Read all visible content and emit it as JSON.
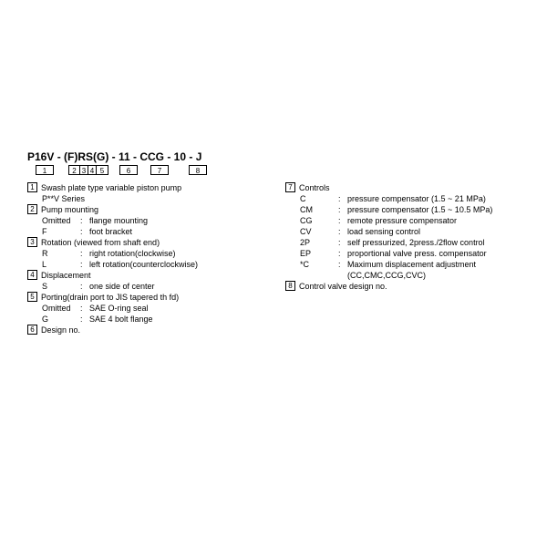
{
  "model": "P16V - (F)RS(G) - 11 - CCG - 10 - J",
  "boxes": [
    "1",
    "2",
    "3",
    "4",
    "5",
    "6",
    "7",
    "8"
  ],
  "left": [
    {
      "n": "1",
      "title": "Swash plate type variable piston pump",
      "extra": "P**V Series"
    },
    {
      "n": "2",
      "title": "Pump mounting",
      "subs": [
        {
          "k": "Omitted",
          "v": "flange mounting"
        },
        {
          "k": "F",
          "v": "foot bracket"
        }
      ]
    },
    {
      "n": "3",
      "title": "Rotation (viewed from shaft end)",
      "subs": [
        {
          "k": "R",
          "v": "right rotation(clockwise)"
        },
        {
          "k": "L",
          "v": "left rotation(counterclockwise)"
        }
      ]
    },
    {
      "n": "4",
      "title": "Displacement",
      "subs": [
        {
          "k": "S",
          "v": "one side of center"
        }
      ]
    },
    {
      "n": "5",
      "title": "Porting(drain port to JIS tapered th  fd)",
      "subs": [
        {
          "k": "Omitted",
          "v": "SAE O-ring seal"
        },
        {
          "k": "G",
          "v": "SAE 4 bolt flange"
        }
      ]
    },
    {
      "n": "6",
      "title": "Design no."
    }
  ],
  "right": [
    {
      "n": "7",
      "title": "Controls",
      "subs": [
        {
          "k": "C",
          "v": "pressure compensator (1.5 ~ 21 MPa)"
        },
        {
          "k": "CM",
          "v": "pressure compensator (1.5 ~ 10.5 MPa)"
        },
        {
          "k": "CG",
          "v": "remote pressure compensator"
        },
        {
          "k": "CV",
          "v": "load sensing control"
        },
        {
          "k": "2P",
          "v": "self pressurized, 2press./2flow control"
        },
        {
          "k": "EP",
          "v": "proportional valve press. compensator"
        },
        {
          "k": "*C",
          "v": "Maximum displacement adjustment"
        }
      ],
      "extra": "(CC,CMC,CCG,CVC)"
    },
    {
      "n": "8",
      "title": "Control valve design no."
    }
  ]
}
